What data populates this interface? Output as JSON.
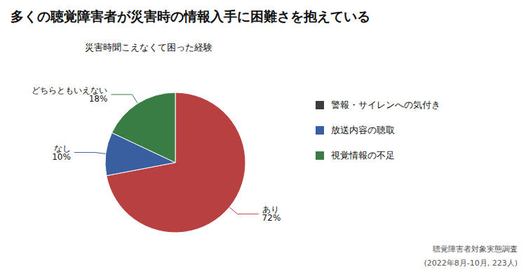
{
  "chart_data": {
    "type": "pie",
    "title": "多くの聴覚障害者が災害時の情報入手に困難さを抱えている",
    "subtitle": "災害時聞こえなくて困った経験",
    "categories": [
      "あり",
      "なし",
      "どちらともいえない"
    ],
    "values": [
      72,
      10,
      18
    ],
    "value_labels": [
      "72%",
      "10%",
      "18%"
    ],
    "colors": [
      "#b94040",
      "#3a5fa0",
      "#3a7d44"
    ],
    "data_labels": true,
    "annotations": [
      {
        "text": "警報・サイレンへの気付き",
        "color": "#3d3d3d"
      },
      {
        "text": "放送内容の聴取",
        "color": "#3a5fa0"
      },
      {
        "text": "視覚情報の不足",
        "color": "#3a7d44"
      }
    ],
    "source": [
      "聴覚障害者対象実態調査",
      "(2022年8月-10月, 223人)"
    ]
  }
}
